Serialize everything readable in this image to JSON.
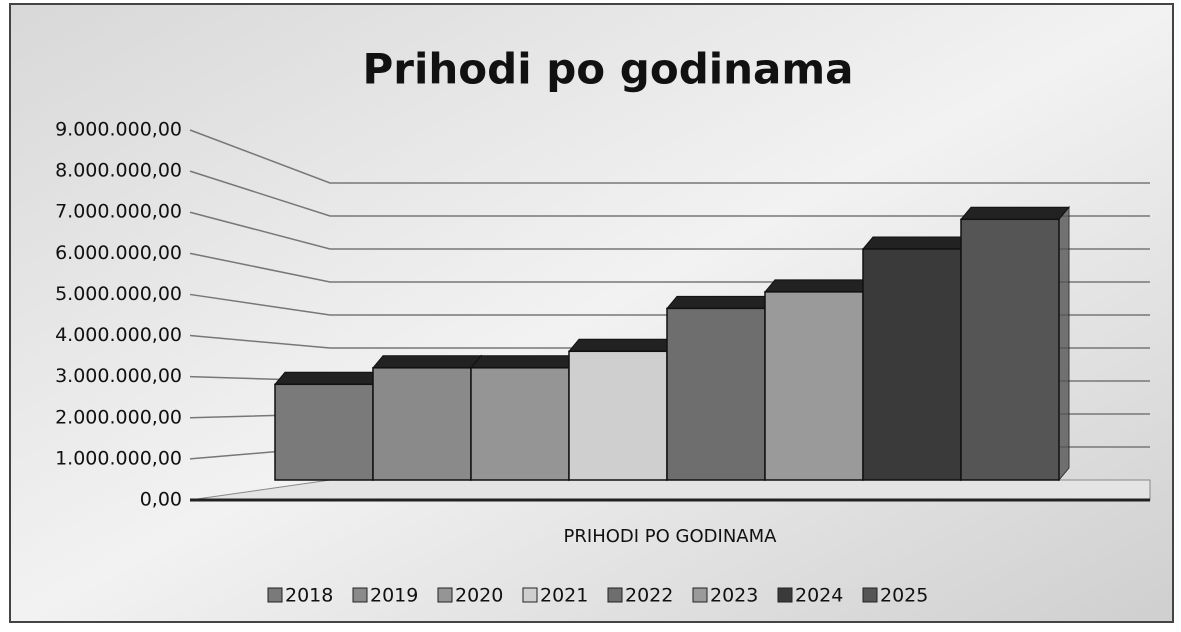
{
  "chart_data": {
    "type": "bar3d",
    "title": "Prihodi po godinama",
    "categories": [
      "PRIHODI PO GODINAMA"
    ],
    "series": [
      {
        "name": "2018",
        "color": "#7a7a7a",
        "values": [
          2900000
        ]
      },
      {
        "name": "2019",
        "color": "#8a8a8a",
        "values": [
          3400000
        ]
      },
      {
        "name": "2020",
        "color": "#959595",
        "values": [
          3400000
        ]
      },
      {
        "name": "2021",
        "color": "#cfcfcf",
        "values": [
          3900000
        ]
      },
      {
        "name": "2022",
        "color": "#6e6e6e",
        "values": [
          5200000
        ]
      },
      {
        "name": "2023",
        "color": "#9a9a9a",
        "values": [
          5700000
        ]
      },
      {
        "name": "2024",
        "color": "#3a3a3a",
        "values": [
          7000000
        ]
      },
      {
        "name": "2025",
        "color": "#555555",
        "values": [
          7900000
        ]
      }
    ],
    "ylim": [
      0,
      9000000
    ],
    "yticks": [
      {
        "value": 0,
        "label": "0,00"
      },
      {
        "value": 1000000,
        "label": "1.000.000,00"
      },
      {
        "value": 2000000,
        "label": "2.000.000,00"
      },
      {
        "value": 3000000,
        "label": "3.000.000,00"
      },
      {
        "value": 4000000,
        "label": "4.000.000,00"
      },
      {
        "value": 5000000,
        "label": "5.000.000,00"
      },
      {
        "value": 6000000,
        "label": "6.000.000,00"
      },
      {
        "value": 7000000,
        "label": "7.000.000,00"
      },
      {
        "value": 8000000,
        "label": "8.000.000,00"
      },
      {
        "value": 9000000,
        "label": "9.000.000,00"
      }
    ],
    "grid": true,
    "legend": "bottom"
  }
}
